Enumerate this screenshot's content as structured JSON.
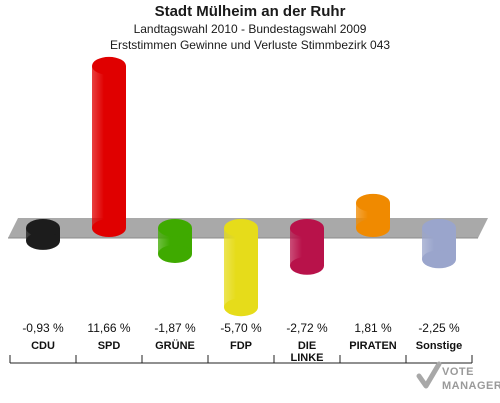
{
  "title": "Stadt Mülheim an der Ruhr",
  "subtitle_1": "Landtagswahl 2010 - Bundestagswahl 2009",
  "subtitle_2": "Erststimmen Gewinne und Verluste Stimmbezirk 043",
  "chart_data": {
    "type": "bar",
    "categories": [
      "CDU",
      "SPD",
      "GRÜNE",
      "FDP",
      "DIE LINKE",
      "PIRATEN",
      "Sonstige"
    ],
    "category_lines": [
      [
        "CDU"
      ],
      [
        "SPD"
      ],
      [
        "GRÜNE"
      ],
      [
        "FDP"
      ],
      [
        "DIE",
        "LINKE"
      ],
      [
        "PIRATEN"
      ],
      [
        "Sonstige"
      ]
    ],
    "values": [
      -0.93,
      11.66,
      -1.87,
      -5.7,
      -2.72,
      1.81,
      -2.25
    ],
    "value_labels": [
      "-0,93 %",
      "11,66 %",
      "-1,87 %",
      "-5,70 %",
      "-2,72 %",
      "1,81 %",
      "-2,25 %"
    ],
    "colors": [
      "#1c1c1c",
      "#e00000",
      "#3faa00",
      "#e6dc1a",
      "#b8124a",
      "#f08a00",
      "#9aa5cc"
    ],
    "grid": false,
    "legend": "none"
  },
  "watermark": {
    "line1": "VOTE",
    "line2": "MANAGER"
  }
}
